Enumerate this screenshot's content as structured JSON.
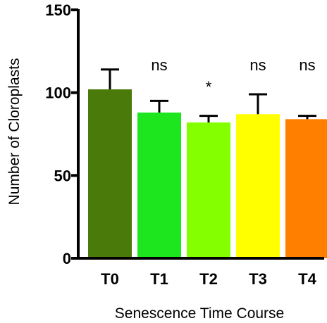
{
  "chart_data": {
    "type": "bar",
    "title": "",
    "xlabel": "Senescence Time Course",
    "ylabel": "Number of Cloroplasts",
    "ylim": [
      0,
      150
    ],
    "yticks": [
      0,
      50,
      100,
      150
    ],
    "y_tick_labels": [
      "0",
      "50",
      "100",
      "150"
    ],
    "categories": [
      "T0",
      "T1",
      "T2",
      "T3",
      "T4"
    ],
    "values": [
      102,
      88,
      82,
      87,
      84
    ],
    "error_upper": [
      114,
      95,
      86,
      99,
      86
    ],
    "significance": [
      "",
      "ns",
      "*",
      "ns",
      "ns"
    ],
    "colors": [
      "#4a7a0a",
      "#1ee61e",
      "#84ff00",
      "#ffff00",
      "#ff8000"
    ],
    "grid": false,
    "legend": "none"
  }
}
